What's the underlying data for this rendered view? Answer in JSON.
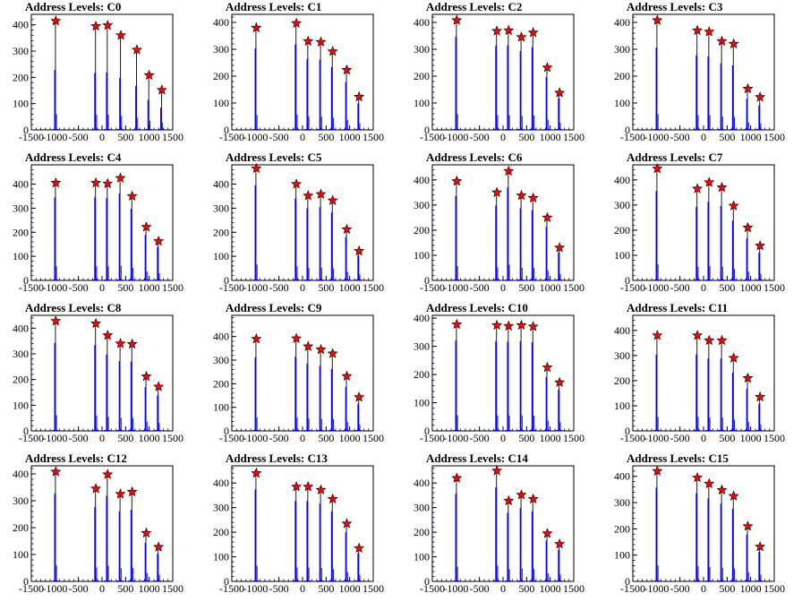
{
  "colors": {
    "histogram": "#0000ff",
    "marker_fill": "#ff0000",
    "marker_stroke": "#000000",
    "axis": "#000000"
  },
  "chart_data": [
    {
      "type": "histogram",
      "title": "Address Levels: C0",
      "xlim": [
        -1500,
        1500
      ],
      "ylim": [
        0,
        440
      ],
      "xticks": [
        "-1500",
        "-1000",
        "-500",
        "0",
        "500",
        "1000",
        "1500"
      ],
      "yticks": [
        "0",
        "100",
        "200",
        "300",
        "400"
      ],
      "peaks": [
        [
          -1000,
          415
        ],
        [
          -150,
          395
        ],
        [
          100,
          398
        ],
        [
          380,
          360
        ],
        [
          720,
          305
        ],
        [
          980,
          208
        ],
        [
          1250,
          152
        ]
      ],
      "blue_fraction": 0.55
    },
    {
      "type": "histogram",
      "title": "Address Levels: C1",
      "xlim": [
        -1500,
        1500
      ],
      "ylim": [
        0,
        430
      ],
      "xticks": [
        "-1500",
        "-1000",
        "-500",
        "0",
        "500",
        "1000",
        "1500"
      ],
      "yticks": [
        "0",
        "100",
        "200",
        "300",
        "400"
      ],
      "peaks": [
        [
          -1000,
          380
        ],
        [
          -150,
          397
        ],
        [
          100,
          330
        ],
        [
          370,
          327
        ],
        [
          620,
          292
        ],
        [
          920,
          223
        ],
        [
          1180,
          123
        ]
      ],
      "blue_fraction": 0.8
    },
    {
      "type": "histogram",
      "title": "Address Levels: C2",
      "xlim": [
        -1500,
        1500
      ],
      "ylim": [
        0,
        430
      ],
      "xticks": [
        "-1500",
        "-1000",
        "-500",
        "0",
        "500",
        "1000",
        "1500"
      ],
      "yticks": [
        "0",
        "100",
        "200",
        "300",
        "400"
      ],
      "peaks": [
        [
          -1000,
          408
        ],
        [
          -150,
          368
        ],
        [
          100,
          370
        ],
        [
          370,
          345
        ],
        [
          620,
          362
        ],
        [
          920,
          232
        ],
        [
          1180,
          138
        ]
      ],
      "blue_fraction": 0.85
    },
    {
      "type": "histogram",
      "title": "Address Levels: C3",
      "xlim": [
        -1500,
        1500
      ],
      "ylim": [
        0,
        430
      ],
      "xticks": [
        "-1500",
        "-1000",
        "-500",
        "0",
        "500",
        "1000",
        "1500"
      ],
      "yticks": [
        "0",
        "100",
        "200",
        "300",
        "400"
      ],
      "peaks": [
        [
          -1000,
          408
        ],
        [
          -150,
          370
        ],
        [
          100,
          365
        ],
        [
          370,
          330
        ],
        [
          620,
          320
        ],
        [
          920,
          153
        ],
        [
          1180,
          122
        ]
      ],
      "blue_fraction": 0.75
    },
    {
      "type": "histogram",
      "title": "Address Levels: C4",
      "xlim": [
        -1500,
        1500
      ],
      "ylim": [
        0,
        480
      ],
      "xticks": [
        "-1500",
        "-1000",
        "-500",
        "0",
        "500",
        "1000",
        "1500"
      ],
      "yticks": [
        "0",
        "100",
        "200",
        "300",
        "400"
      ],
      "peaks": [
        [
          -1000,
          405
        ],
        [
          -150,
          405
        ],
        [
          100,
          402
        ],
        [
          370,
          425
        ],
        [
          620,
          350
        ],
        [
          920,
          222
        ],
        [
          1180,
          163
        ]
      ],
      "blue_fraction": 0.85
    },
    {
      "type": "histogram",
      "title": "Address Levels: C5",
      "xlim": [
        -1500,
        1500
      ],
      "ylim": [
        0,
        480
      ],
      "xticks": [
        "-1500",
        "-1000",
        "-500",
        "0",
        "500",
        "1000",
        "1500"
      ],
      "yticks": [
        "0",
        "100",
        "200",
        "300",
        "400"
      ],
      "peaks": [
        [
          -1000,
          465
        ],
        [
          -150,
          400
        ],
        [
          100,
          352
        ],
        [
          370,
          358
        ],
        [
          620,
          332
        ],
        [
          920,
          212
        ],
        [
          1180,
          122
        ]
      ],
      "blue_fraction": 0.85
    },
    {
      "type": "histogram",
      "title": "Address Levels: C6",
      "xlim": [
        -1500,
        1500
      ],
      "ylim": [
        0,
        460
      ],
      "xticks": [
        "-1500",
        "-1000",
        "-500",
        "0",
        "500",
        "1000",
        "1500"
      ],
      "yticks": [
        "0",
        "100",
        "200",
        "300",
        "400"
      ],
      "peaks": [
        [
          -1000,
          395
        ],
        [
          -150,
          350
        ],
        [
          100,
          435
        ],
        [
          370,
          338
        ],
        [
          620,
          328
        ],
        [
          920,
          250
        ],
        [
          1180,
          130
        ]
      ],
      "blue_fraction": 0.85
    },
    {
      "type": "histogram",
      "title": "Address Levels: C7",
      "xlim": [
        -1500,
        1500
      ],
      "ylim": [
        0,
        460
      ],
      "xticks": [
        "-1500",
        "-1000",
        "-500",
        "0",
        "500",
        "1000",
        "1500"
      ],
      "yticks": [
        "0",
        "100",
        "200",
        "300",
        "400"
      ],
      "peaks": [
        [
          -1000,
          445
        ],
        [
          -150,
          365
        ],
        [
          100,
          390
        ],
        [
          370,
          370
        ],
        [
          620,
          297
        ],
        [
          920,
          210
        ],
        [
          1180,
          138
        ]
      ],
      "blue_fraction": 0.8
    },
    {
      "type": "histogram",
      "title": "Address Levels: C8",
      "xlim": [
        -1500,
        1500
      ],
      "ylim": [
        0,
        450
      ],
      "xticks": [
        "-1500",
        "-1000",
        "-500",
        "0",
        "500",
        "1000",
        "1500"
      ],
      "yticks": [
        "0",
        "100",
        "200",
        "300",
        "400"
      ],
      "peaks": [
        [
          -1000,
          428
        ],
        [
          -150,
          418
        ],
        [
          100,
          372
        ],
        [
          370,
          340
        ],
        [
          620,
          338
        ],
        [
          920,
          212
        ],
        [
          1180,
          172
        ]
      ],
      "blue_fraction": 0.8
    },
    {
      "type": "histogram",
      "title": "Address Levels: C9",
      "xlim": [
        -1500,
        1500
      ],
      "ylim": [
        0,
        490
      ],
      "xticks": [
        "-1500",
        "-1000",
        "-500",
        "0",
        "500",
        "1000",
        "1500"
      ],
      "yticks": [
        "0",
        "100",
        "200",
        "300",
        "400"
      ],
      "peaks": [
        [
          -1000,
          390
        ],
        [
          -150,
          392
        ],
        [
          100,
          358
        ],
        [
          370,
          345
        ],
        [
          620,
          328
        ],
        [
          920,
          232
        ],
        [
          1180,
          143
        ]
      ],
      "blue_fraction": 0.8
    },
    {
      "type": "histogram",
      "title": "Address Levels: C10",
      "xlim": [
        -1500,
        1500
      ],
      "ylim": [
        0,
        410
      ],
      "xticks": [
        "-1500",
        "-1000",
        "-500",
        "0",
        "500",
        "1000",
        "1500"
      ],
      "yticks": [
        "0",
        "100",
        "200",
        "300",
        "400"
      ],
      "peaks": [
        [
          -1000,
          378
        ],
        [
          -150,
          375
        ],
        [
          100,
          372
        ],
        [
          370,
          375
        ],
        [
          620,
          370
        ],
        [
          920,
          225
        ],
        [
          1180,
          172
        ]
      ],
      "blue_fraction": 0.85
    },
    {
      "type": "histogram",
      "title": "Address Levels: C11",
      "xlim": [
        -1500,
        1500
      ],
      "ylim": [
        0,
        460
      ],
      "xticks": [
        "-1500",
        "-1000",
        "-500",
        "0",
        "500",
        "1000",
        "1500"
      ],
      "yticks": [
        "0",
        "100",
        "200",
        "300",
        "400"
      ],
      "peaks": [
        [
          -1000,
          380
        ],
        [
          -150,
          380
        ],
        [
          100,
          360
        ],
        [
          370,
          360
        ],
        [
          620,
          290
        ],
        [
          920,
          210
        ],
        [
          1180,
          135
        ]
      ],
      "blue_fraction": 0.8
    },
    {
      "type": "histogram",
      "title": "Address Levels: C12",
      "xlim": [
        -1500,
        1500
      ],
      "ylim": [
        0,
        430
      ],
      "xticks": [
        "-1500",
        "-1000",
        "-500",
        "0",
        "500",
        "1000",
        "1500"
      ],
      "yticks": [
        "0",
        "100",
        "200",
        "300",
        "400"
      ],
      "peaks": [
        [
          -1000,
          408
        ],
        [
          -150,
          345
        ],
        [
          100,
          398
        ],
        [
          370,
          325
        ],
        [
          620,
          333
        ],
        [
          920,
          180
        ],
        [
          1180,
          128
        ]
      ],
      "blue_fraction": 0.8
    },
    {
      "type": "histogram",
      "title": "Address Levels: C13",
      "xlim": [
        -1500,
        1500
      ],
      "ylim": [
        0,
        470
      ],
      "xticks": [
        "-1500",
        "-1000",
        "-500",
        "0",
        "500",
        "1000",
        "1500"
      ],
      "yticks": [
        "0",
        "100",
        "200",
        "300",
        "400"
      ],
      "peaks": [
        [
          -1000,
          440
        ],
        [
          -150,
          385
        ],
        [
          100,
          385
        ],
        [
          370,
          372
        ],
        [
          620,
          335
        ],
        [
          920,
          235
        ],
        [
          1180,
          135
        ]
      ],
      "blue_fraction": 0.85
    },
    {
      "type": "histogram",
      "title": "Address Levels: C14",
      "xlim": [
        -1500,
        1500
      ],
      "ylim": [
        0,
        470
      ],
      "xticks": [
        "-1500",
        "-1000",
        "-500",
        "0",
        "500",
        "1000",
        "1500"
      ],
      "yticks": [
        "0",
        "100",
        "200",
        "300",
        "400"
      ],
      "peaks": [
        [
          -1000,
          420
        ],
        [
          -150,
          450
        ],
        [
          100,
          328
        ],
        [
          370,
          352
        ],
        [
          620,
          335
        ],
        [
          920,
          195
        ],
        [
          1180,
          152
        ]
      ],
      "blue_fraction": 0.85
    },
    {
      "type": "histogram",
      "title": "Address Levels: C15",
      "xlim": [
        -1500,
        1500
      ],
      "ylim": [
        0,
        440
      ],
      "xticks": [
        "-1500",
        "-1000",
        "-500",
        "0",
        "500",
        "1000",
        "1500"
      ],
      "yticks": [
        "0",
        "100",
        "200",
        "300",
        "400"
      ],
      "peaks": [
        [
          -1000,
          420
        ],
        [
          -150,
          395
        ],
        [
          100,
          372
        ],
        [
          370,
          348
        ],
        [
          620,
          325
        ],
        [
          920,
          210
        ],
        [
          1180,
          132
        ]
      ],
      "blue_fraction": 0.85
    }
  ]
}
